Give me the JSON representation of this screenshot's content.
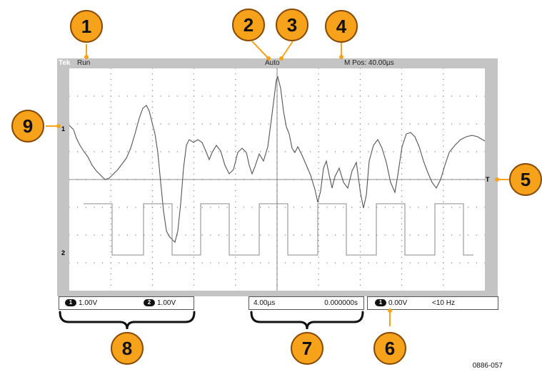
{
  "top_bar": {
    "brand": "Tek",
    "acquisition_status": "Run",
    "trigger_status": "Auto",
    "horizontal_position": "M Pos: 40.00µs"
  },
  "markers": {
    "ch1_ground": "1",
    "ch2_ground": "2",
    "trigger_level": "T"
  },
  "status_bar": {
    "ch1_badge": "1",
    "ch1_scale": "1.00V",
    "ch2_badge": "2",
    "ch2_scale": "1.00V",
    "time_scale": "4.00µs",
    "trigger_time": "0.000000s",
    "trigger_badge": "1",
    "trigger_level": "0.00V",
    "trigger_freq": "<10 Hz"
  },
  "callouts": [
    "1",
    "2",
    "3",
    "4",
    "5",
    "6",
    "7",
    "8",
    "9"
  ],
  "figure_id": "0886-057",
  "colors": {
    "callout_fill": "#f7a21b",
    "callout_border": "#8a4b00",
    "bezel": "#c4c4c4",
    "trace": "#555555"
  }
}
